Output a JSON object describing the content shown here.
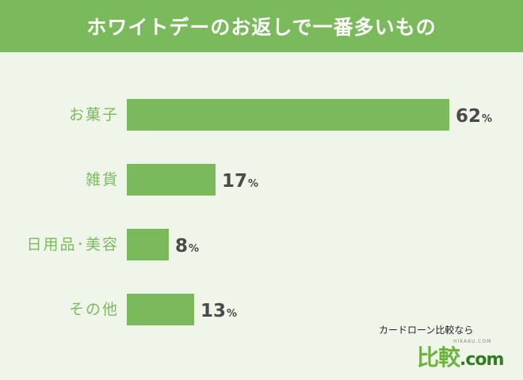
{
  "chart_data": {
    "type": "bar",
    "orientation": "horizontal",
    "title": "ホワイトデーのお返しで一番多いもの",
    "categories": [
      "お菓子",
      "雑貨",
      "日用品･美容",
      "その他"
    ],
    "values": [
      62,
      17,
      8,
      13
    ],
    "unit": "%",
    "xlim": [
      0,
      62
    ],
    "grid": false,
    "legend": "none",
    "colors": {
      "bar": "#7aba5c",
      "header": "#7aba5c",
      "background": "#f0f5ea",
      "value_text": "#4a4a4a"
    }
  },
  "brand": {
    "line1": "カードローン比較なら",
    "tiny": "HIKAKU.COM",
    "main": "比較",
    "dotcom": ".com"
  }
}
